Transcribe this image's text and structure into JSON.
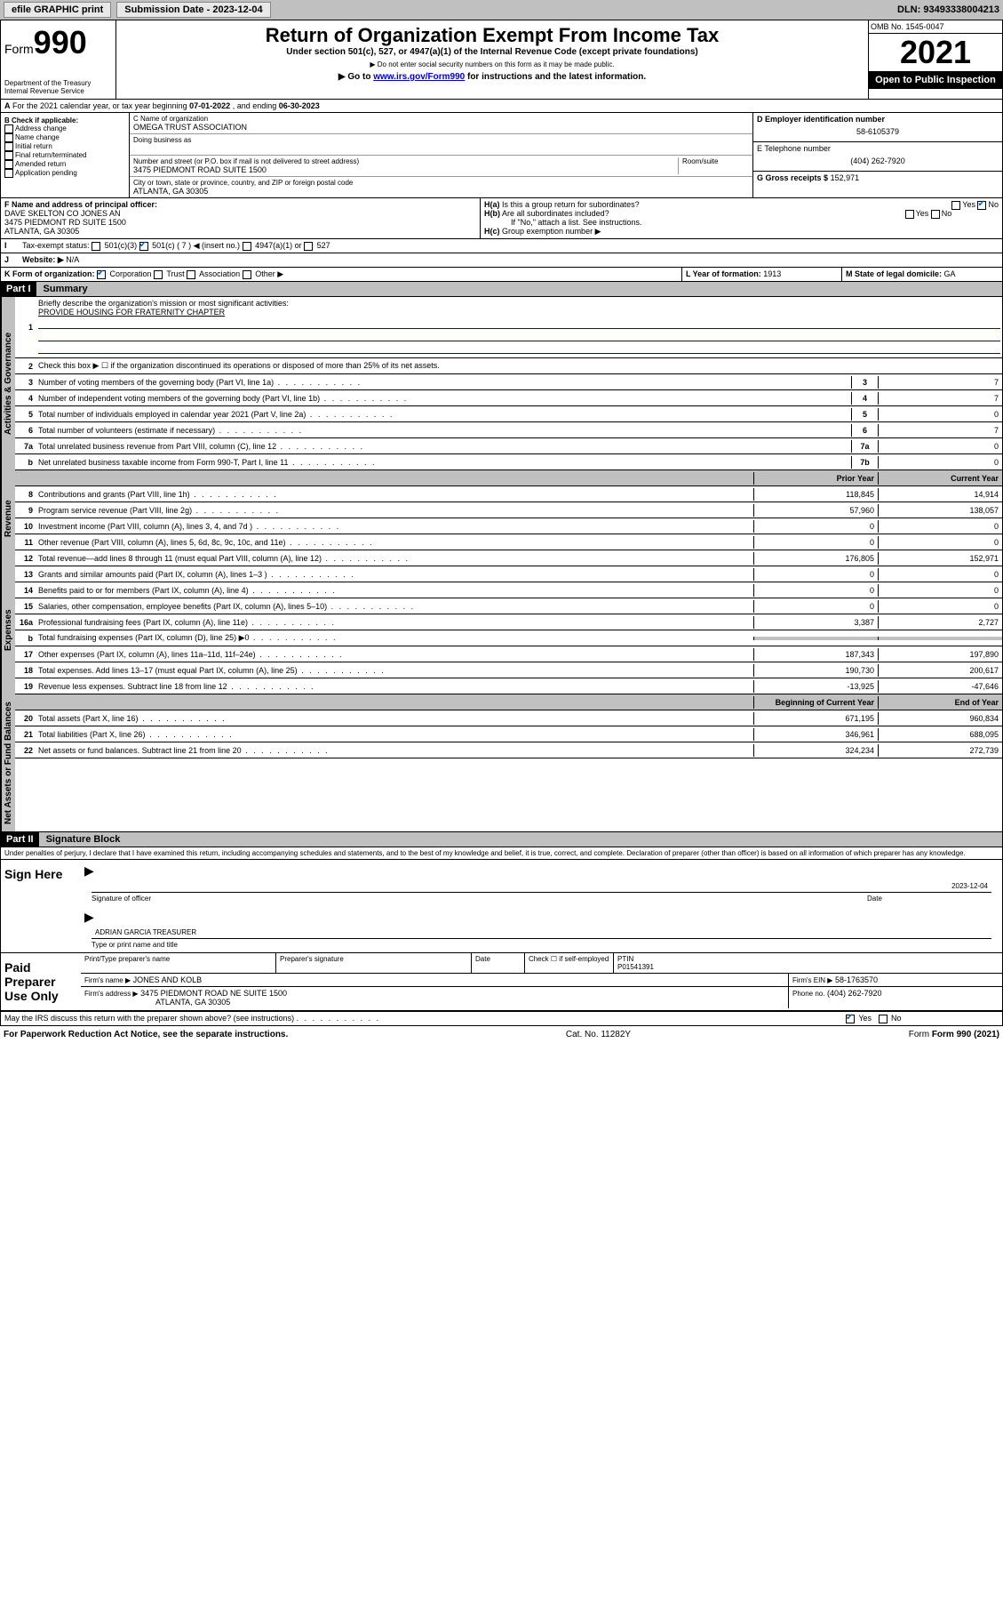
{
  "topbar": {
    "efile": "efile GRAPHIC print",
    "sub_label": "Submission Date - ",
    "sub_date": "2023-12-04",
    "dln_label": "DLN: ",
    "dln": "93493338004213"
  },
  "header": {
    "form": "Form",
    "num": "990",
    "dept": "Department of the Treasury",
    "irs": "Internal Revenue Service",
    "title": "Return of Organization Exempt From Income Tax",
    "sub1": "Under section 501(c), 527, or 4947(a)(1) of the Internal Revenue Code (except private foundations)",
    "sub2": "▶ Do not enter social security numbers on this form as it may be made public.",
    "sub3a": "▶ Go to ",
    "sub3link": "www.irs.gov/Form990",
    "sub3b": " for instructions and the latest information.",
    "omb": "OMB No. 1545-0047",
    "year": "2021",
    "open": "Open to Public Inspection"
  },
  "A": {
    "text": "For the 2021 calendar year, or tax year beginning ",
    "begin": "07-01-2022",
    "mid": " , and ending ",
    "end": "06-30-2023"
  },
  "B": {
    "label": "B Check if applicable:",
    "items": [
      "Address change",
      "Name change",
      "Initial return",
      "Final return/terminated",
      "Amended return",
      "Application pending"
    ]
  },
  "C": {
    "name_label": "C Name of organization",
    "name": "OMEGA TRUST ASSOCIATION",
    "dba_label": "Doing business as",
    "street_label": "Number and street (or P.O. box if mail is not delivered to street address)",
    "room_label": "Room/suite",
    "street": "3475 PIEDMONT ROAD SUITE 1500",
    "city_label": "City or town, state or province, country, and ZIP or foreign postal code",
    "city": "ATLANTA, GA  30305"
  },
  "D": {
    "label": "D Employer identification number",
    "val": "58-6105379"
  },
  "E": {
    "label": "E Telephone number",
    "val": "(404) 262-7920"
  },
  "G": {
    "label": "G Gross receipts $",
    "val": "152,971"
  },
  "F": {
    "label": "F  Name and address of principal officer:",
    "l1": "DAVE SKELTON CO JONES AN",
    "l2": "3475 PIEDMONT RD SUITE 1500",
    "l3": "ATLANTA, GA  30305"
  },
  "H": {
    "a": "Is this a group return for subordinates?",
    "b": "Are all subordinates included?",
    "note": "If \"No,\" attach a list. See instructions.",
    "c": "Group exemption number ▶"
  },
  "I": {
    "label": "Tax-exempt status:",
    "opts": [
      "501(c)(3)",
      "501(c) ( 7 ) ◀ (insert no.)",
      "4947(a)(1) or",
      "527"
    ]
  },
  "J": {
    "label": "Website: ▶",
    "val": "N/A"
  },
  "K": {
    "label": "K Form of organization:",
    "opts": [
      "Corporation",
      "Trust",
      "Association",
      "Other ▶"
    ]
  },
  "L": {
    "label": "L Year of formation:",
    "val": "1913"
  },
  "M": {
    "label": "M State of legal domicile:",
    "val": "GA"
  },
  "part1": {
    "hdr": "Part I",
    "title": "Summary",
    "q1": "Briefly describe the organization's mission or most significant activities:",
    "q1a": "PROVIDE HOUSING FOR FRATERNITY CHAPTER",
    "q2": "Check this box ▶ ☐  if the organization discontinued its operations or disposed of more than 25% of its net assets.",
    "tabs": {
      "gov": "Activities & Governance",
      "rev": "Revenue",
      "exp": "Expenses",
      "net": "Net Assets or Fund Balances"
    },
    "cols": {
      "prior": "Prior Year",
      "curr": "Current Year",
      "beg": "Beginning of Current Year",
      "end": "End of Year"
    },
    "gov_rows": [
      {
        "n": "3",
        "t": "Number of voting members of the governing body (Part VI, line 1a)",
        "box": "3",
        "v": "7"
      },
      {
        "n": "4",
        "t": "Number of independent voting members of the governing body (Part VI, line 1b)",
        "box": "4",
        "v": "7"
      },
      {
        "n": "5",
        "t": "Total number of individuals employed in calendar year 2021 (Part V, line 2a)",
        "box": "5",
        "v": "0"
      },
      {
        "n": "6",
        "t": "Total number of volunteers (estimate if necessary)",
        "box": "6",
        "v": "7"
      },
      {
        "n": "7a",
        "t": "Total unrelated business revenue from Part VIII, column (C), line 12",
        "box": "7a",
        "v": "0"
      },
      {
        "n": "b",
        "t": "Net unrelated business taxable income from Form 990-T, Part I, line 11",
        "box": "7b",
        "v": "0"
      }
    ],
    "rev_rows": [
      {
        "n": "8",
        "t": "Contributions and grants (Part VIII, line 1h)",
        "p": "118,845",
        "c": "14,914"
      },
      {
        "n": "9",
        "t": "Program service revenue (Part VIII, line 2g)",
        "p": "57,960",
        "c": "138,057"
      },
      {
        "n": "10",
        "t": "Investment income (Part VIII, column (A), lines 3, 4, and 7d )",
        "p": "0",
        "c": "0"
      },
      {
        "n": "11",
        "t": "Other revenue (Part VIII, column (A), lines 5, 6d, 8c, 9c, 10c, and 11e)",
        "p": "0",
        "c": "0"
      },
      {
        "n": "12",
        "t": "Total revenue—add lines 8 through 11 (must equal Part VIII, column (A), line 12)",
        "p": "176,805",
        "c": "152,971"
      }
    ],
    "exp_rows": [
      {
        "n": "13",
        "t": "Grants and similar amounts paid (Part IX, column (A), lines 1–3 )",
        "p": "0",
        "c": "0"
      },
      {
        "n": "14",
        "t": "Benefits paid to or for members (Part IX, column (A), line 4)",
        "p": "0",
        "c": "0"
      },
      {
        "n": "15",
        "t": "Salaries, other compensation, employee benefits (Part IX, column (A), lines 5–10)",
        "p": "0",
        "c": "0"
      },
      {
        "n": "16a",
        "t": "Professional fundraising fees (Part IX, column (A), line 11e)",
        "p": "3,387",
        "c": "2,727"
      },
      {
        "n": "b",
        "t": "Total fundraising expenses (Part IX, column (D), line 25) ▶0",
        "p": "",
        "c": "",
        "shaded": true
      },
      {
        "n": "17",
        "t": "Other expenses (Part IX, column (A), lines 11a–11d, 11f–24e)",
        "p": "187,343",
        "c": "197,890"
      },
      {
        "n": "18",
        "t": "Total expenses. Add lines 13–17 (must equal Part IX, column (A), line 25)",
        "p": "190,730",
        "c": "200,617"
      },
      {
        "n": "19",
        "t": "Revenue less expenses. Subtract line 18 from line 12",
        "p": "-13,925",
        "c": "-47,646"
      }
    ],
    "net_rows": [
      {
        "n": "20",
        "t": "Total assets (Part X, line 16)",
        "p": "671,195",
        "c": "960,834"
      },
      {
        "n": "21",
        "t": "Total liabilities (Part X, line 26)",
        "p": "346,961",
        "c": "688,095"
      },
      {
        "n": "22",
        "t": "Net assets or fund balances. Subtract line 21 from line 20",
        "p": "324,234",
        "c": "272,739"
      }
    ]
  },
  "part2": {
    "hdr": "Part II",
    "title": "Signature Block",
    "decl": "Under penalties of perjury, I declare that I have examined this return, including accompanying schedules and statements, and to the best of my knowledge and belief, it is true, correct, and complete. Declaration of preparer (other than officer) is based on all information of which preparer has any knowledge.",
    "sign_here": "Sign Here",
    "sig_officer": "Signature of officer",
    "sig_date": "Date",
    "sig_date_val": "2023-12-04",
    "sig_name": "ADRIAN GARCIA TREASURER",
    "sig_name_label": "Type or print name and title",
    "paid": "Paid Preparer Use Only",
    "prep_name_label": "Print/Type preparer's name",
    "prep_sig_label": "Preparer's signature",
    "prep_date_label": "Date",
    "check_if": "Check ☐ if self-employed",
    "ptin_label": "PTIN",
    "ptin": "P01541391",
    "firm_name_label": "Firm's name    ▶",
    "firm_name": "JONES AND KOLB",
    "firm_ein_label": "Firm's EIN ▶",
    "firm_ein": "58-1763570",
    "firm_addr_label": "Firm's address ▶",
    "firm_addr1": "3475 PIEDMONT ROAD NE SUITE 1500",
    "firm_addr2": "ATLANTA, GA  30305",
    "phone_label": "Phone no.",
    "phone": "(404) 262-7920",
    "may_irs": "May the IRS discuss this return with the preparer shown above? (see instructions)"
  },
  "footer": {
    "left": "For Paperwork Reduction Act Notice, see the separate instructions.",
    "mid": "Cat. No. 11282Y",
    "right": "Form 990 (2021)"
  }
}
